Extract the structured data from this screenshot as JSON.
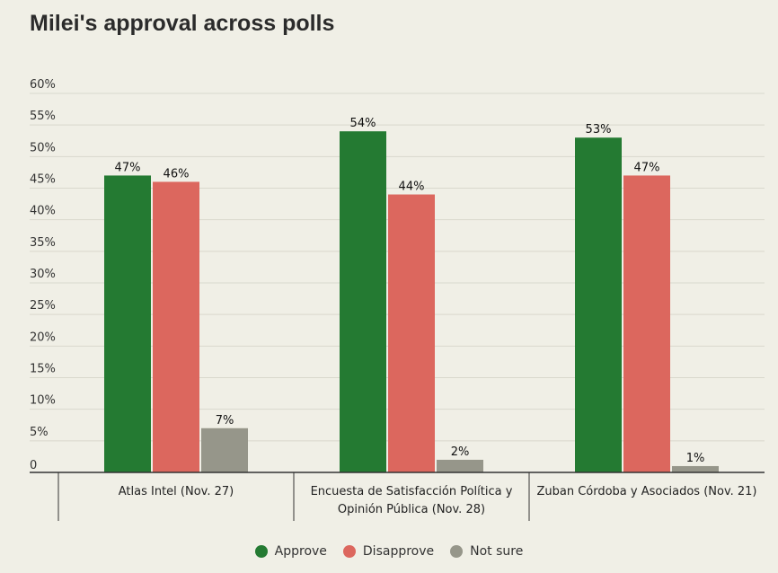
{
  "chart_data": {
    "type": "bar",
    "title": "Milei's approval across polls",
    "categories": [
      [
        "Atlas Intel (Nov. 27)"
      ],
      [
        "Encuesta de Satisfacción Política y",
        "Opinión Pública (Nov. 28)"
      ],
      [
        "Zuban Córdoba y Asociados (Nov. 21)"
      ]
    ],
    "series": [
      {
        "name": "Approve",
        "color": "#247a32",
        "values": [
          47,
          54,
          53
        ]
      },
      {
        "name": "Disapprove",
        "color": "#dc675e",
        "values": [
          46,
          44,
          47
        ]
      },
      {
        "name": "Not sure",
        "color": "#96968a",
        "values": [
          7,
          2,
          1
        ]
      }
    ],
    "yticks": [
      "0",
      "5%",
      "10%",
      "15%",
      "20%",
      "25%",
      "30%",
      "35%",
      "40%",
      "45%",
      "50%",
      "55%",
      "60%"
    ],
    "ylim": [
      0,
      60
    ],
    "grid": true,
    "legend": "bottom-center"
  }
}
